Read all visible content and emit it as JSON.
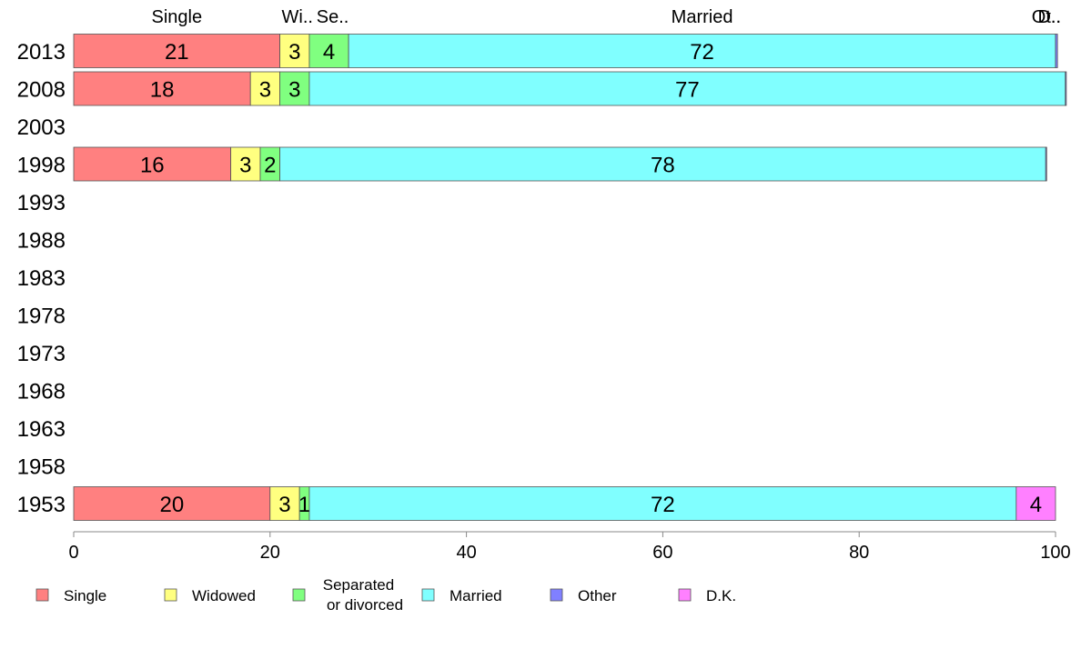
{
  "chart_data": {
    "type": "bar",
    "orientation": "horizontal",
    "stacked": true,
    "categories": [
      "2013",
      "2008",
      "2003",
      "1998",
      "1993",
      "1988",
      "1983",
      "1978",
      "1973",
      "1968",
      "1963",
      "1958",
      "1953"
    ],
    "series": [
      {
        "name": "Single",
        "color": "#ff8080",
        "values": [
          21,
          18,
          null,
          16,
          null,
          null,
          null,
          null,
          null,
          null,
          null,
          null,
          20
        ]
      },
      {
        "name": "Widowed",
        "color": "#ffff80",
        "values": [
          3,
          3,
          null,
          3,
          null,
          null,
          null,
          null,
          null,
          null,
          null,
          null,
          3
        ]
      },
      {
        "name": "Separated or divorced",
        "color": "#80ff80",
        "values": [
          4,
          3,
          null,
          2,
          null,
          null,
          null,
          null,
          null,
          null,
          null,
          null,
          1
        ]
      },
      {
        "name": "Married",
        "color": "#80ffff",
        "values": [
          72,
          77,
          null,
          78,
          null,
          null,
          null,
          null,
          null,
          null,
          null,
          null,
          72
        ]
      },
      {
        "name": "Other",
        "color": "#8080ff",
        "values": [
          0.2,
          0.1,
          null,
          0.1,
          null,
          null,
          null,
          null,
          null,
          null,
          null,
          null,
          0
        ]
      },
      {
        "name": "D.K.",
        "color": "#ff80ff",
        "values": [
          0,
          0,
          null,
          0,
          null,
          null,
          null,
          null,
          null,
          null,
          null,
          null,
          4
        ]
      }
    ],
    "top_labels": [
      "Single",
      "Wi..",
      "Se..",
      "Married",
      "Ot..",
      "D.."
    ],
    "legend_labels": [
      "Single",
      "Widowed",
      "Separated\nor divorced",
      "Married",
      "Other",
      "D.K."
    ],
    "xlim": [
      0,
      100
    ],
    "xticks": [
      "0",
      "20",
      "40",
      "60",
      "80",
      "100"
    ],
    "grid": false,
    "legend_position": "bottom"
  }
}
